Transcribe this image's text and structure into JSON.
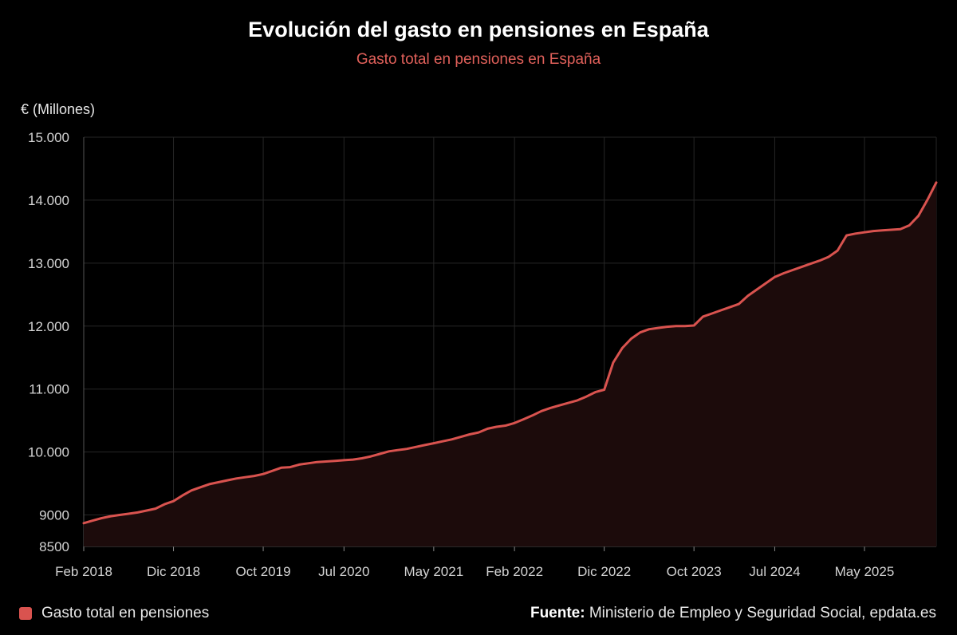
{
  "header": {
    "title": "Evolución del gasto en pensiones en España",
    "subtitle": "Gasto total en pensiones en España"
  },
  "colors": {
    "line": "#d9534f",
    "area": "#1c0b0b",
    "grid": "#262626",
    "tick_text": "#d4d4d4"
  },
  "legend": {
    "label": "Gasto total en pensiones"
  },
  "source": {
    "label": "Fuente:",
    "text": "Ministerio de Empleo y Seguridad Social, epdata.es"
  },
  "chart_data": {
    "type": "area",
    "title": "Evolución del gasto en pensiones en España",
    "subtitle": "Gasto total en pensiones en España",
    "ylabel": "€ (Millones)",
    "xlabel": "",
    "ylim": [
      8500,
      15000
    ],
    "yticks": [
      {
        "value": 8500,
        "label": "8500"
      },
      {
        "value": 9000,
        "label": "9000"
      },
      {
        "value": 10000,
        "label": "10.000"
      },
      {
        "value": 11000,
        "label": "11.000"
      },
      {
        "value": 12000,
        "label": "12.000"
      },
      {
        "value": 13000,
        "label": "13.000"
      },
      {
        "value": 14000,
        "label": "14.000"
      },
      {
        "value": 15000,
        "label": "15.000"
      }
    ],
    "xlim": [
      "2018-02",
      "2026-01"
    ],
    "xticks": [
      {
        "date": "2018-02",
        "label": "Feb 2018"
      },
      {
        "date": "2018-12",
        "label": "Dic 2018"
      },
      {
        "date": "2019-10",
        "label": "Oct 2019"
      },
      {
        "date": "2020-07",
        "label": "Jul 2020"
      },
      {
        "date": "2021-05",
        "label": "May 2021"
      },
      {
        "date": "2022-02",
        "label": "Feb 2022"
      },
      {
        "date": "2022-12",
        "label": "Dic 2022"
      },
      {
        "date": "2023-10",
        "label": "Oct 2023"
      },
      {
        "date": "2024-07",
        "label": "Jul 2024"
      },
      {
        "date": "2025-05",
        "label": "May 2025"
      }
    ],
    "series": [
      {
        "name": "Gasto total en pensiones",
        "color": "#d9534f",
        "points": [
          [
            "2018-02",
            8870
          ],
          [
            "2018-03",
            8910
          ],
          [
            "2018-04",
            8950
          ],
          [
            "2018-05",
            8980
          ],
          [
            "2018-06",
            9000
          ],
          [
            "2018-07",
            9020
          ],
          [
            "2018-08",
            9040
          ],
          [
            "2018-09",
            9070
          ],
          [
            "2018-10",
            9100
          ],
          [
            "2018-11",
            9170
          ],
          [
            "2018-12",
            9220
          ],
          [
            "2019-01",
            9310
          ],
          [
            "2019-02",
            9390
          ],
          [
            "2019-03",
            9440
          ],
          [
            "2019-04",
            9490
          ],
          [
            "2019-05",
            9520
          ],
          [
            "2019-06",
            9550
          ],
          [
            "2019-07",
            9580
          ],
          [
            "2019-08",
            9600
          ],
          [
            "2019-09",
            9620
          ],
          [
            "2019-10",
            9650
          ],
          [
            "2019-11",
            9700
          ],
          [
            "2019-12",
            9750
          ],
          [
            "2020-01",
            9760
          ],
          [
            "2020-02",
            9800
          ],
          [
            "2020-03",
            9820
          ],
          [
            "2020-04",
            9840
          ],
          [
            "2020-05",
            9850
          ],
          [
            "2020-06",
            9860
          ],
          [
            "2020-07",
            9870
          ],
          [
            "2020-08",
            9880
          ],
          [
            "2020-09",
            9900
          ],
          [
            "2020-10",
            9930
          ],
          [
            "2020-11",
            9970
          ],
          [
            "2020-12",
            10010
          ],
          [
            "2021-01",
            10030
          ],
          [
            "2021-02",
            10050
          ],
          [
            "2021-03",
            10080
          ],
          [
            "2021-04",
            10110
          ],
          [
            "2021-05",
            10140
          ],
          [
            "2021-06",
            10170
          ],
          [
            "2021-07",
            10200
          ],
          [
            "2021-08",
            10240
          ],
          [
            "2021-09",
            10280
          ],
          [
            "2021-10",
            10310
          ],
          [
            "2021-11",
            10370
          ],
          [
            "2021-12",
            10400
          ],
          [
            "2022-01",
            10420
          ],
          [
            "2022-02",
            10460
          ],
          [
            "2022-03",
            10520
          ],
          [
            "2022-04",
            10580
          ],
          [
            "2022-05",
            10650
          ],
          [
            "2022-06",
            10700
          ],
          [
            "2022-07",
            10740
          ],
          [
            "2022-08",
            10780
          ],
          [
            "2022-09",
            10820
          ],
          [
            "2022-10",
            10880
          ],
          [
            "2022-11",
            10950
          ],
          [
            "2022-12",
            10990
          ],
          [
            "2023-01",
            11420
          ],
          [
            "2023-02",
            11650
          ],
          [
            "2023-03",
            11800
          ],
          [
            "2023-04",
            11900
          ],
          [
            "2023-05",
            11950
          ],
          [
            "2023-06",
            11970
          ],
          [
            "2023-07",
            11990
          ],
          [
            "2023-08",
            12000
          ],
          [
            "2023-09",
            12000
          ],
          [
            "2023-10",
            12010
          ],
          [
            "2023-11",
            12150
          ],
          [
            "2023-12",
            12200
          ],
          [
            "2024-01",
            12250
          ],
          [
            "2024-02",
            12300
          ],
          [
            "2024-03",
            12350
          ],
          [
            "2024-04",
            12480
          ],
          [
            "2024-05",
            12580
          ],
          [
            "2024-06",
            12680
          ],
          [
            "2024-07",
            12780
          ],
          [
            "2024-08",
            12840
          ],
          [
            "2024-09",
            12890
          ],
          [
            "2024-10",
            12940
          ],
          [
            "2024-11",
            12990
          ],
          [
            "2024-12",
            13040
          ],
          [
            "2025-01",
            13100
          ],
          [
            "2025-02",
            13200
          ],
          [
            "2025-03",
            13440
          ],
          [
            "2025-04",
            13470
          ],
          [
            "2025-05",
            13490
          ],
          [
            "2025-06",
            13510
          ],
          [
            "2025-07",
            13520
          ],
          [
            "2025-08",
            13530
          ],
          [
            "2025-09",
            13540
          ],
          [
            "2025-10",
            13600
          ],
          [
            "2025-11",
            13750
          ],
          [
            "2025-12",
            14000
          ],
          [
            "2026-01",
            14280
          ]
        ]
      }
    ],
    "legend_position": "bottom-left",
    "grid": true
  }
}
